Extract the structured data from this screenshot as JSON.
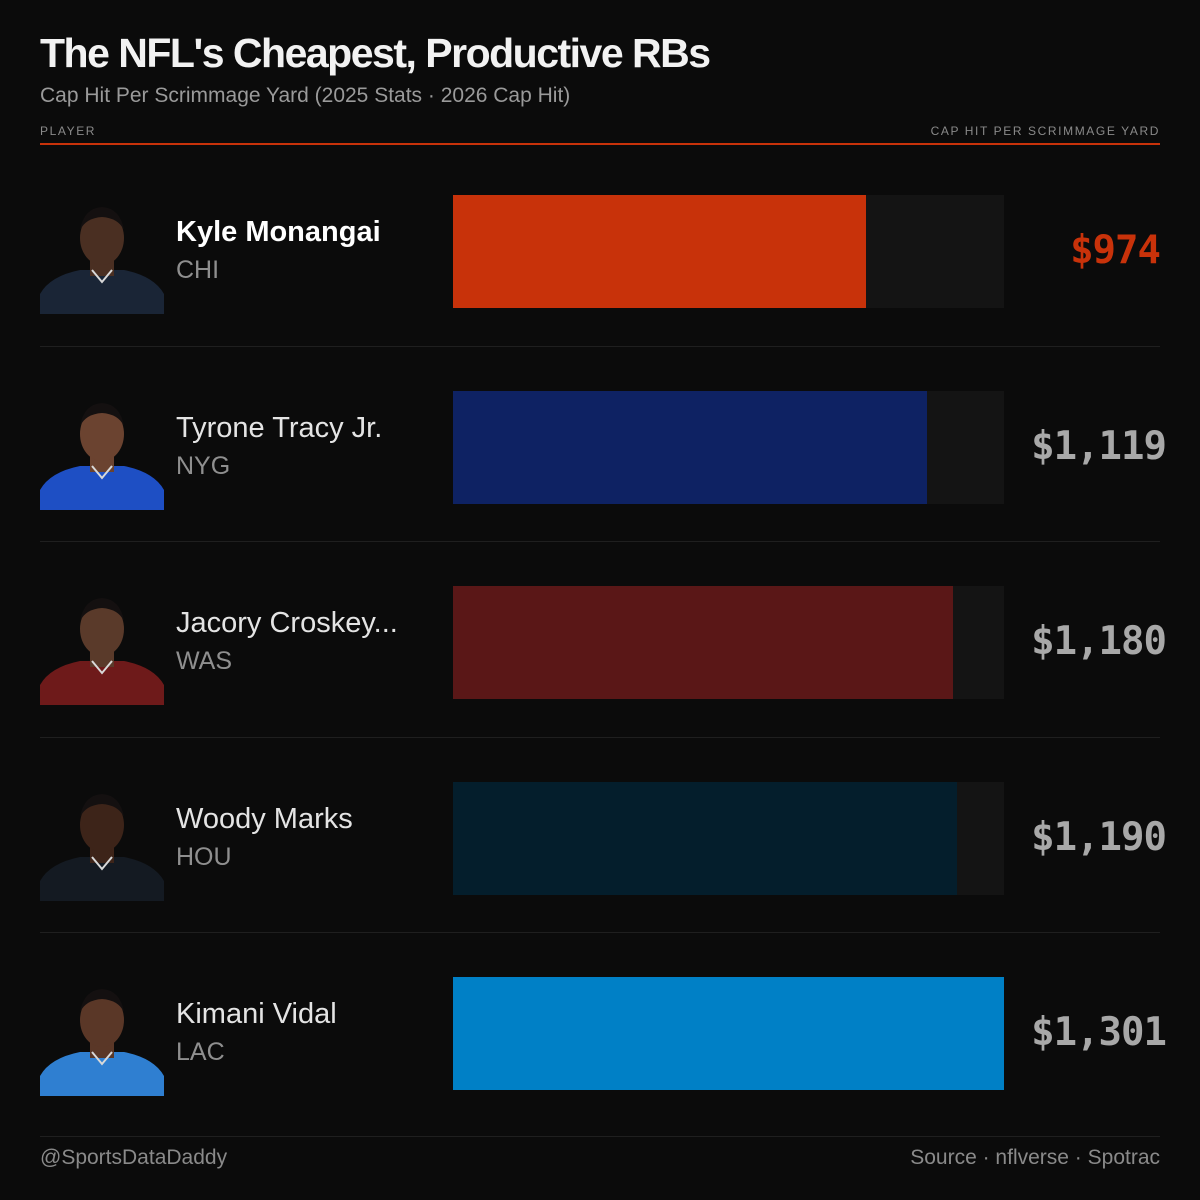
{
  "header": {
    "title": "The NFL's Cheapest, Productive RBs",
    "subtitle": "Cap Hit Per Scrimmage Yard (2025 Stats · 2026 Cap Hit)",
    "col_left": "PLAYER",
    "col_right": "CAP HIT PER SCRIMMAGE YARD"
  },
  "chart_data": {
    "type": "bar",
    "orientation": "horizontal",
    "categories": [
      "Kyle Monangai",
      "Tyrone Tracy Jr.",
      "Jacory Croskey...",
      "Woody Marks",
      "Kimani Vidal"
    ],
    "values": [
      974,
      1119,
      1180,
      1190,
      1301
    ],
    "xlim": [
      0,
      1301
    ],
    "grid": false,
    "rows": [
      {
        "name": "Kyle Monangai",
        "team": "CHI",
        "value": 974,
        "label": "$974",
        "color": "#c8320a",
        "jersey": "#1a2536",
        "skin": "#4a2f22"
      },
      {
        "name": "Tyrone Tracy Jr.",
        "team": "NYG",
        "value": 1119,
        "label": "$1,119",
        "color": "#0e2263",
        "jersey": "#1e4fc4",
        "skin": "#6b4330"
      },
      {
        "name": "Jacory Croskey...",
        "team": "WAS",
        "value": 1180,
        "label": "$1,180",
        "color": "#5a1717",
        "jersey": "#6e1a1a",
        "skin": "#5a3a2a"
      },
      {
        "name": "Woody Marks",
        "team": "HOU",
        "value": 1190,
        "label": "$1,190",
        "color": "#041e2c",
        "jersey": "#141a22",
        "skin": "#3d2419"
      },
      {
        "name": "Kimani Vidal",
        "team": "LAC",
        "value": 1301,
        "label": "$1,301",
        "color": "#0080c6",
        "jersey": "#2f7fd1",
        "skin": "#5a3727"
      }
    ]
  },
  "footer": {
    "handle": "@SportsDataDaddy",
    "source": "Source · nflverse · Spotrac"
  }
}
